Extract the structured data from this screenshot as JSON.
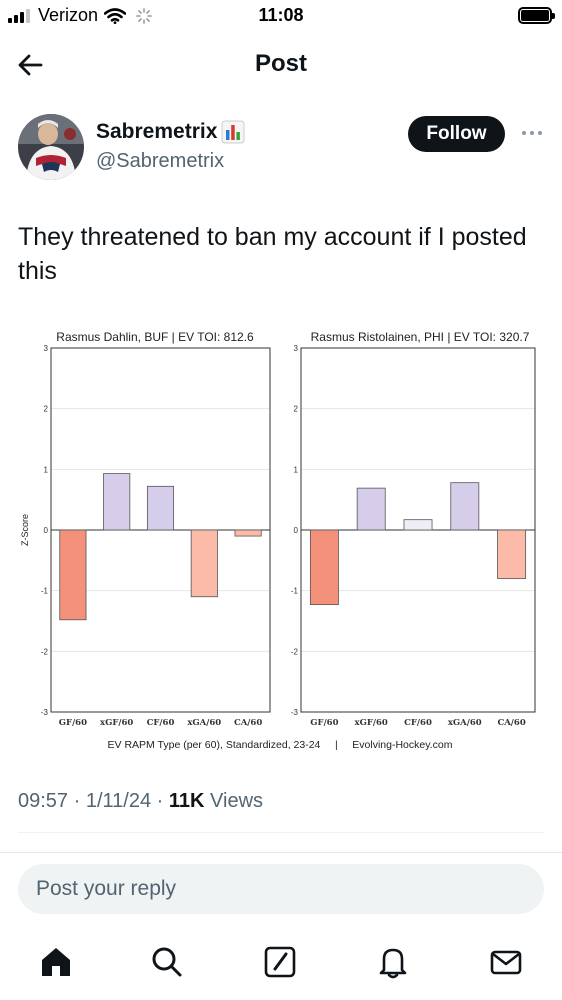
{
  "status_bar": {
    "carrier": "Verizon",
    "time": "11:08"
  },
  "header": {
    "title": "Post"
  },
  "author": {
    "display_name": "Sabremetrix",
    "handle": "@Sabremetrix",
    "follow_label": "Follow"
  },
  "tweet": {
    "text": "They threatened to ban my account if I posted this",
    "time": "09:57",
    "date": "1/11/24",
    "views_count": "11K",
    "views_label": "Views"
  },
  "reply": {
    "placeholder": "Post your reply"
  },
  "colors": {
    "follow_bg": "#0f1419",
    "muted_text": "#536471",
    "bar_red_dark": "#f4917a",
    "bar_red_light": "#fcbba9",
    "bar_purple_dark": "#b9a8d8",
    "bar_purple_light": "#d6cdea",
    "bar_purple_faint": "#efedf6"
  },
  "chart_data": [
    {
      "type": "bar",
      "title": "Rasmus Dahlin, BUF  |  EV TOI: 812.6",
      "ylabel": "Z-Score",
      "ylim": [
        -3,
        3
      ],
      "yticks": [
        3,
        2,
        1,
        0,
        -1,
        -2,
        -3
      ],
      "categories": [
        "GF/60",
        "xGF/60",
        "CF/60",
        "xGA/60",
        "CA/60"
      ],
      "values": [
        -1.48,
        0.93,
        0.72,
        -1.1,
        -0.1
      ]
    },
    {
      "type": "bar",
      "title": "Rasmus Ristolainen, PHI  |  EV TOI: 320.7",
      "ylabel": "",
      "ylim": [
        -3,
        3
      ],
      "yticks": [
        3,
        2,
        1,
        0,
        -1,
        -2,
        -3
      ],
      "categories": [
        "GF/60",
        "xGF/60",
        "CF/60",
        "xGA/60",
        "CA/60"
      ],
      "values": [
        -1.23,
        0.69,
        0.17,
        0.78,
        -0.8
      ]
    }
  ],
  "chart_caption": "EV RAPM Type (per 60), Standardized, 23-24     |     Evolving-Hockey.com",
  "nav": {
    "items": [
      "home-icon",
      "search-icon",
      "compose-icon",
      "notifications-icon",
      "messages-icon"
    ]
  }
}
